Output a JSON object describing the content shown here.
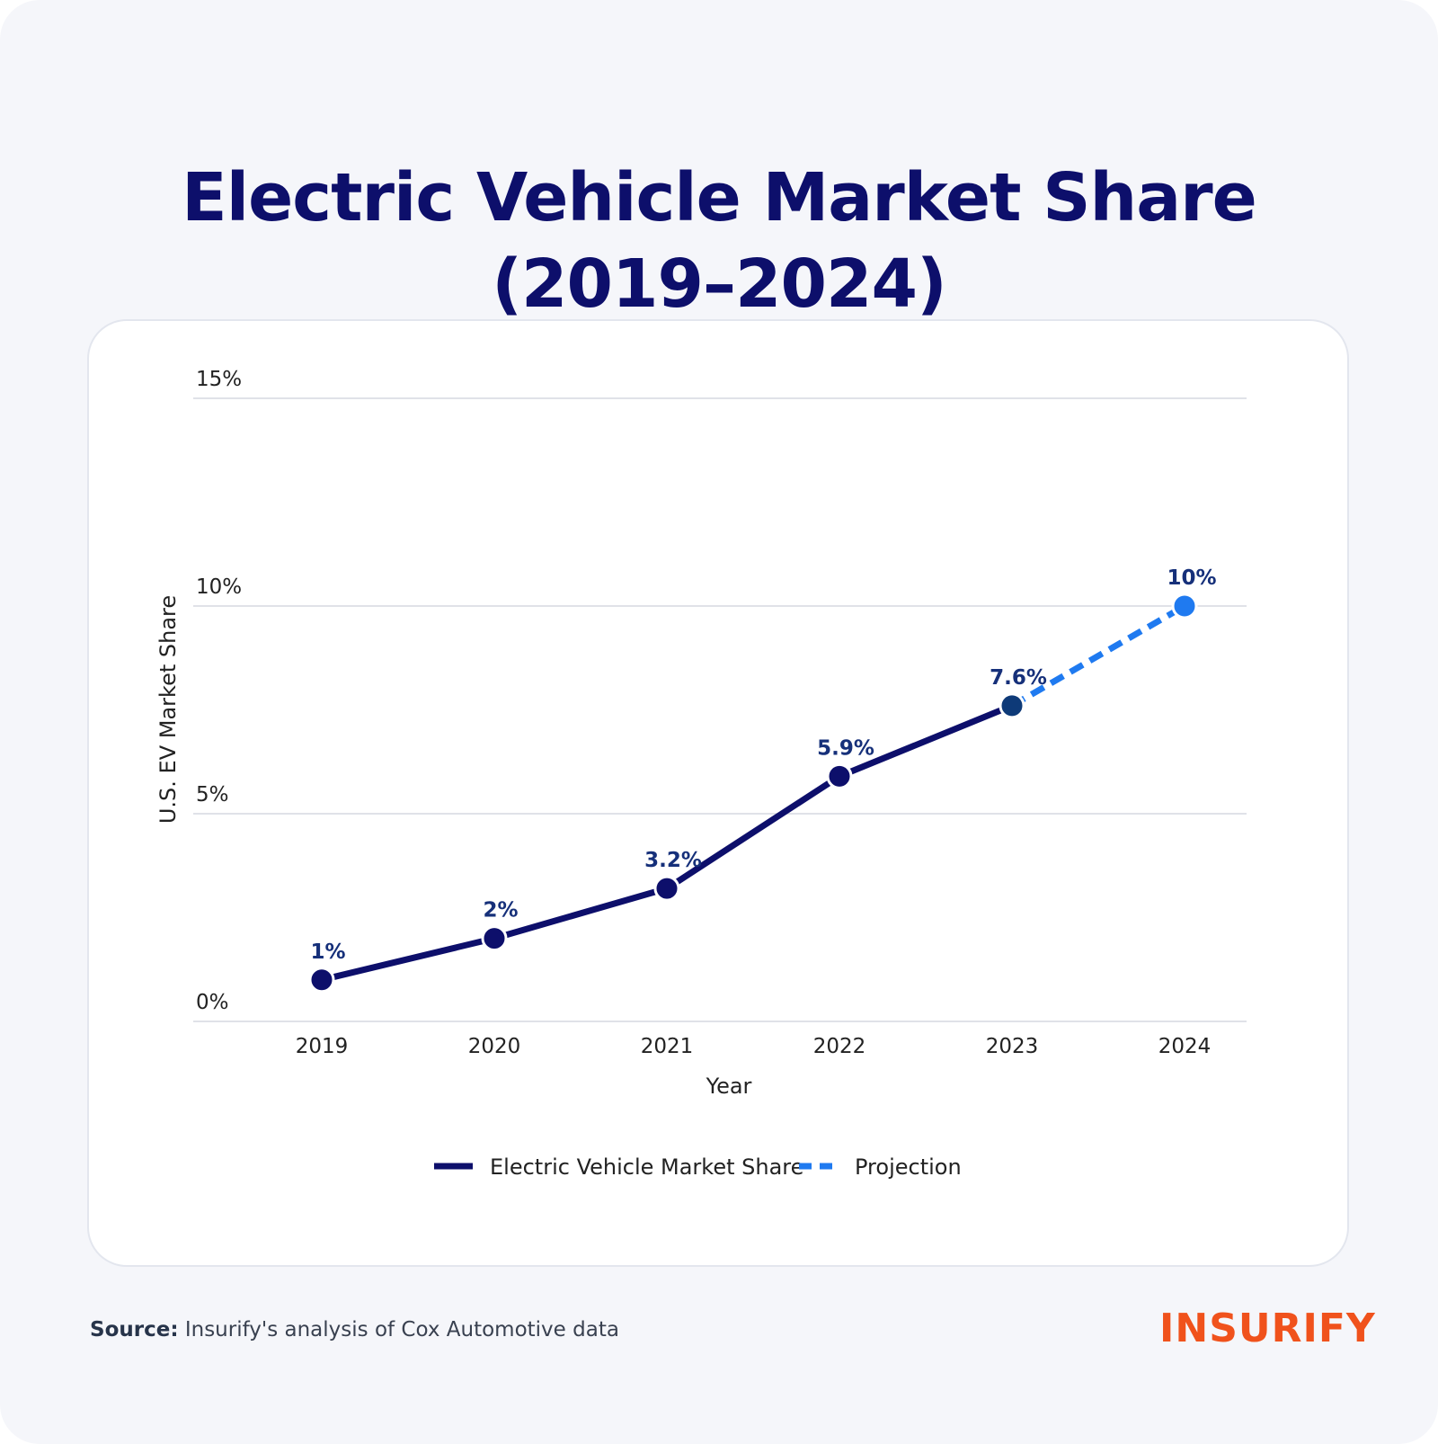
{
  "title": {
    "line1": "Electric Vehicle Market Share",
    "line2": "(2019–2024)"
  },
  "colors": {
    "actual": "#0d0f6b",
    "projection": "#1f7af0",
    "label": "#16307a",
    "grid": "#d6d9e0",
    "axis_text": "#222222",
    "brand": "#f0521c"
  },
  "chart_data": {
    "type": "line",
    "title": "Electric Vehicle Market Share (2019–2024)",
    "xlabel": "Year",
    "ylabel": "U.S. EV Market Share",
    "ylim": [
      0,
      15
    ],
    "yticks": [
      0,
      5,
      10,
      15
    ],
    "ytick_labels": [
      "0%",
      "5%",
      "10%",
      "15%"
    ],
    "categories": [
      "2019",
      "2020",
      "2021",
      "2022",
      "2023",
      "2024"
    ],
    "series": [
      {
        "name": "Electric Vehicle Market Share",
        "style": "solid",
        "x": [
          "2019",
          "2020",
          "2021",
          "2022",
          "2023"
        ],
        "values": [
          1,
          2,
          3.2,
          5.9,
          7.6
        ],
        "labels": [
          "1%",
          "2%",
          "3.2%",
          "5.9%",
          "7.6%"
        ]
      },
      {
        "name": "Projection",
        "style": "dashed",
        "x": [
          "2023",
          "2024"
        ],
        "values": [
          7.6,
          10
        ],
        "labels": [
          "",
          "10%"
        ]
      }
    ],
    "legend": "bottom-center",
    "grid": true
  },
  "source": {
    "label": "Source:",
    "text": "Insurify's analysis of Cox Automotive data"
  },
  "brand": {
    "logo_text": "INSURIFY"
  }
}
